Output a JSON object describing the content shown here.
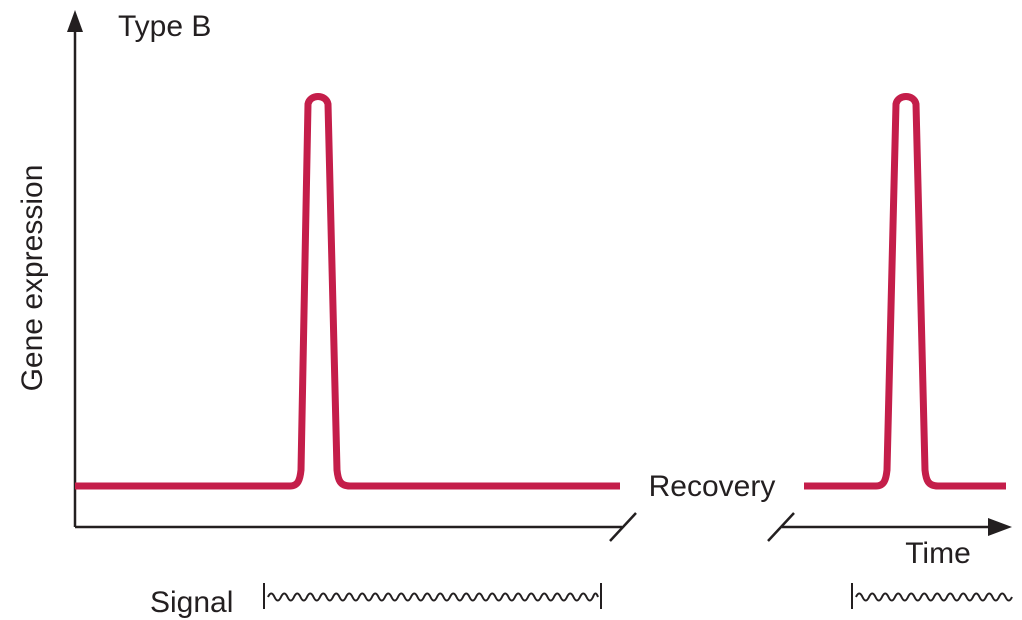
{
  "title": "Type B",
  "y_axis_label": "Gene expression",
  "x_axis_label": "Time",
  "recovery_label": "Recovery",
  "signal_label": "Signal",
  "colors": {
    "trace": "#c41e4a",
    "axis": "#231f20",
    "text": "#231f20"
  }
}
